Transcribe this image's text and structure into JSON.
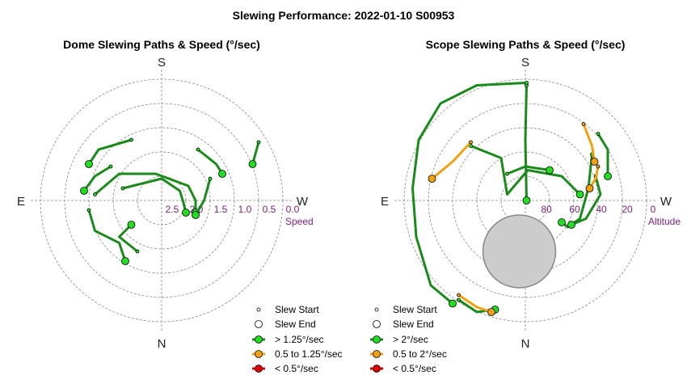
{
  "title": "Slewing Performance: 2022-01-10 S00953",
  "colors": {
    "fast": "#1a8a1a",
    "fast_marker": "#22dd22",
    "medium": "#f0a010",
    "slow": "#dd0000",
    "grid": "#888888",
    "ring_label": "#7a1f7a",
    "obscured": "#cccccc"
  },
  "chart_data": [
    {
      "type": "polar-path",
      "title": "Dome Slewing Paths & Speed (°/sec)",
      "directions": {
        "top": "S",
        "bottom": "N",
        "left": "E",
        "right": "W"
      },
      "radial_label": "Speed",
      "radial_ticks": [
        "2.5",
        "2.0",
        "1.5",
        "1.0",
        "0.5",
        "0.0"
      ],
      "legend": {
        "start": "Slew Start",
        "end": "Slew End",
        "fast": "> 1.25°/sec",
        "medium": "0.5 to 1.25°/sec",
        "slow": "< 0.5°/sec"
      },
      "paths": [
        {
          "speed": "fast",
          "points": [
            [
              -0.25,
              0.5
            ],
            [
              -0.52,
              0.42
            ],
            [
              -0.6,
              0.3
            ]
          ]
        },
        {
          "speed": "fast",
          "points": [
            [
              -0.42,
              0.28
            ],
            [
              -0.55,
              0.2
            ],
            [
              -0.64,
              0.08
            ]
          ]
        },
        {
          "speed": "fast",
          "points": [
            [
              -0.6,
              -0.08
            ],
            [
              -0.55,
              -0.25
            ],
            [
              -0.35,
              -0.35
            ],
            [
              -0.3,
              -0.5
            ]
          ]
        },
        {
          "speed": "fast",
          "points": [
            [
              -0.2,
              -0.42
            ],
            [
              -0.35,
              -0.3
            ],
            [
              -0.25,
              -0.2
            ]
          ]
        },
        {
          "speed": "fast",
          "points": [
            [
              -0.55,
              0.05
            ],
            [
              -0.35,
              0.22
            ],
            [
              -0.05,
              0.22
            ],
            [
              0.22,
              0.12
            ],
            [
              0.28,
              0.0
            ],
            [
              0.28,
              -0.1
            ]
          ]
        },
        {
          "speed": "fast",
          "points": [
            [
              -0.32,
              0.1
            ],
            [
              0.0,
              0.18
            ],
            [
              0.15,
              0.08
            ],
            [
              0.18,
              -0.02
            ],
            [
              0.2,
              -0.1
            ]
          ]
        },
        {
          "speed": "fast",
          "points": [
            [
              0.4,
              0.18
            ],
            [
              0.35,
              0.0
            ],
            [
              0.28,
              -0.12
            ]
          ]
        },
        {
          "speed": "fast",
          "points": [
            [
              0.3,
              0.42
            ],
            [
              0.45,
              0.3
            ],
            [
              0.5,
              0.22
            ]
          ]
        },
        {
          "speed": "fast",
          "points": [
            [
              0.8,
              0.48
            ],
            [
              0.75,
              0.3
            ]
          ]
        }
      ]
    },
    {
      "type": "polar-path",
      "title": "Scope Slewing Paths & Speed (°/sec)",
      "directions": {
        "top": "S",
        "bottom": "N",
        "left": "E",
        "right": "W"
      },
      "radial_label": "Altitude",
      "radial_ticks": [
        "80",
        "60",
        "40",
        "20",
        "0"
      ],
      "legend": {
        "start": "Slew Start",
        "end": "Slew End",
        "fast": "> 2°/sec",
        "medium": "0.5 to 2°/sec",
        "slow": "< 0.5°/sec"
      },
      "obscured_zone": {
        "x": -0.05,
        "y": -0.42,
        "r": 0.3
      },
      "paths": [
        {
          "speed": "fast",
          "points": [
            [
              0.01,
              0.95
            ],
            [
              0.0,
              0.5
            ],
            [
              0.01,
              0.0
            ]
          ]
        },
        {
          "speed": "fast",
          "points": [
            [
              0.01,
              0.97
            ],
            [
              -0.4,
              0.95
            ],
            [
              -0.7,
              0.8
            ],
            [
              -0.88,
              0.5
            ],
            [
              -0.93,
              0.1
            ],
            [
              -0.9,
              -0.3
            ],
            [
              -0.78,
              -0.7
            ],
            [
              -0.6,
              -0.85
            ]
          ]
        },
        {
          "speed": "fast",
          "points": [
            [
              -0.55,
              -0.82
            ],
            [
              -0.4,
              -0.92
            ],
            [
              -0.25,
              -0.9
            ]
          ]
        },
        {
          "speed": "fast",
          "points": [
            [
              -0.45,
              0.45
            ],
            [
              -0.2,
              0.35
            ],
            [
              -0.15,
              0.05
            ],
            [
              0.02,
              0.25
            ],
            [
              0.3,
              0.2
            ],
            [
              0.45,
              0.05
            ]
          ]
        },
        {
          "speed": "fast",
          "points": [
            [
              -0.15,
              0.22
            ],
            [
              0.0,
              0.28
            ],
            [
              0.2,
              0.25
            ]
          ]
        },
        {
          "speed": "fast",
          "points": [
            [
              0.55,
              0.38
            ],
            [
              0.52,
              0.1
            ],
            [
              0.45,
              -0.15
            ],
            [
              0.35,
              -0.22
            ],
            [
              0.3,
              -0.18
            ]
          ]
        },
        {
          "speed": "fast",
          "points": [
            [
              0.58,
              0.2
            ],
            [
              0.62,
              0.05
            ],
            [
              0.5,
              -0.15
            ],
            [
              0.38,
              -0.2
            ]
          ]
        },
        {
          "speed": "fast",
          "points": [
            [
              0.6,
              0.55
            ],
            [
              0.68,
              0.42
            ],
            [
              0.68,
              0.2
            ]
          ]
        },
        {
          "speed": "medium",
          "points": [
            [
              -0.45,
              0.48
            ],
            [
              -0.6,
              0.32
            ],
            [
              -0.77,
              0.18
            ]
          ]
        },
        {
          "speed": "medium",
          "points": [
            [
              0.48,
              0.63
            ],
            [
              0.55,
              0.45
            ],
            [
              0.57,
              0.32
            ]
          ]
        },
        {
          "speed": "medium",
          "points": [
            [
              0.6,
              0.28
            ],
            [
              0.58,
              0.18
            ],
            [
              0.53,
              0.1
            ]
          ]
        },
        {
          "speed": "medium",
          "points": [
            [
              -0.55,
              -0.78
            ],
            [
              -0.4,
              -0.88
            ],
            [
              -0.28,
              -0.92
            ]
          ]
        }
      ]
    }
  ]
}
